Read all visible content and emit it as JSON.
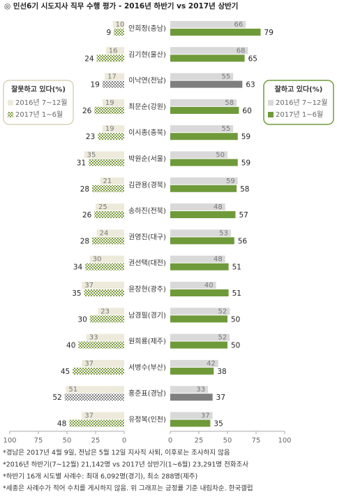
{
  "chart_data": {
    "type": "butterfly",
    "title": "◎ 민선6기 시도지사 직무 수행 평가 - 2016년 하반기 vs 2017년 상반기",
    "categories": [
      "안희정(충남)",
      "김기현(울산)",
      "이낙연(전남)",
      "최문순(강원)",
      "이시종(충북)",
      "박원순(서울)",
      "김관용(경북)",
      "송하진(전북)",
      "권영진(대구)",
      "권선택(대전)",
      "윤장현(광주)",
      "남경필(경기)",
      "원희룡(제주)",
      "서병수(부산)",
      "홍준표(경남)",
      "유정복(인천)"
    ],
    "left": {
      "title": "잘못하고 있다(%)",
      "border": "#d8d2b8",
      "series": [
        {
          "name": "2016년 7~12월",
          "color": "#eeeadb",
          "pattern": "solid",
          "values": [
            10,
            16,
            17,
            19,
            19,
            35,
            21,
            25,
            24,
            30,
            37,
            23,
            33,
            37,
            51,
            37
          ]
        },
        {
          "name": "2017년 1~6월",
          "color": "#7a9a3c",
          "pattern": "checker",
          "colors": [
            "#7a9a3c",
            "#7a9a3c",
            "#7f7f7f",
            "#7a9a3c",
            "#7a9a3c",
            "#7a9a3c",
            "#7a9a3c",
            "#7a9a3c",
            "#7a9a3c",
            "#7a9a3c",
            "#7a9a3c",
            "#7a9a3c",
            "#7a9a3c",
            "#7a9a3c",
            "#7f7f7f",
            "#7a9a3c"
          ],
          "values": [
            9,
            24,
            19,
            26,
            23,
            31,
            28,
            26,
            28,
            34,
            35,
            30,
            40,
            45,
            52,
            48
          ]
        }
      ]
    },
    "right": {
      "title": "잘하고 있다(%)",
      "border": "#6f9a3a",
      "series": [
        {
          "name": "2016년 7~12월",
          "color": "#d9d9d9",
          "pattern": "solid",
          "values": [
            66,
            68,
            55,
            58,
            55,
            50,
            59,
            48,
            53,
            48,
            40,
            52,
            52,
            42,
            33,
            37
          ]
        },
        {
          "name": "2017년 1~6월",
          "color": "#6f9a3a",
          "pattern": "solid",
          "colors": [
            "#6f9a3a",
            "#6f9a3a",
            "#7f7f7f",
            "#6f9a3a",
            "#6f9a3a",
            "#6f9a3a",
            "#6f9a3a",
            "#6f9a3a",
            "#6f9a3a",
            "#6f9a3a",
            "#6f9a3a",
            "#6f9a3a",
            "#6f9a3a",
            "#6f9a3a",
            "#7f7f7f",
            "#6f9a3a"
          ],
          "values": [
            79,
            65,
            63,
            60,
            59,
            59,
            58,
            57,
            56,
            51,
            51,
            50,
            50,
            38,
            37,
            35
          ]
        }
      ]
    },
    "xlim": [
      0,
      100
    ],
    "xticks": [
      0,
      25,
      50,
      75,
      100
    ],
    "notes": [
      "*경남은 2017년 4월 9일, 전남은 5월 12일 지사직 사퇴, 이후로는 조사하지 않음",
      "*2016년 하반기(7~12월) 21,142명 vs 2017년 상반기(1~6월) 23,291명 전화조사",
      "*하반기 16개 시도별 사례수: 최대 6,092명(경기), 최소 288명(제주)",
      "*세종은 사례수가 적어 수치를 게시하지 않음. 위 그래프는 긍정률 기준 내림차순. 한국갤럽"
    ]
  }
}
